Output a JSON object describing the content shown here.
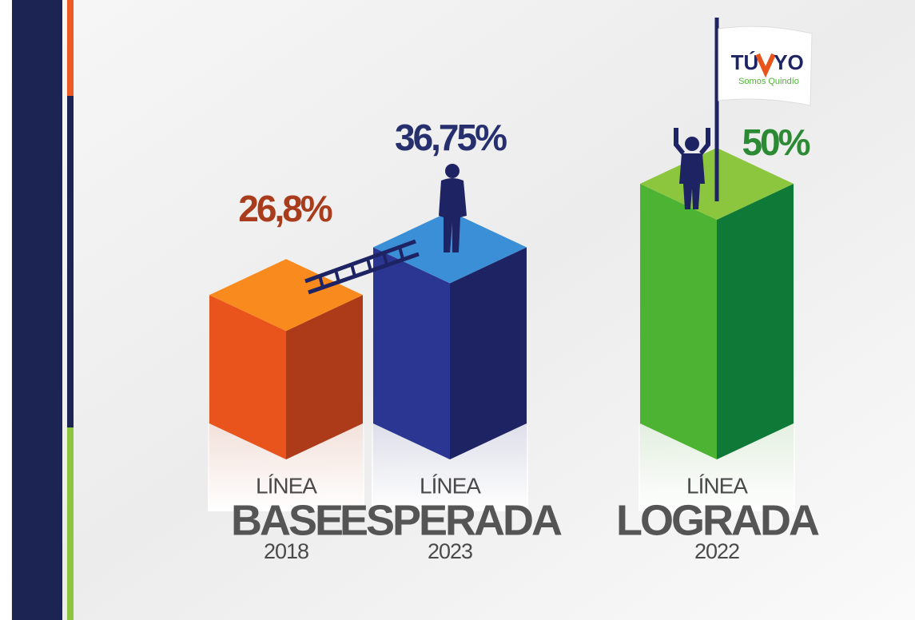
{
  "chart_data": {
    "type": "bar",
    "category_headers": [
      "LÍNEA",
      "LÍNEA",
      "LÍNEA"
    ],
    "categories": [
      "BASE",
      "ESPERADA",
      "LOGRADA"
    ],
    "years": [
      "2018",
      "2023",
      "2022"
    ],
    "values": [
      26.8,
      36.75,
      50
    ],
    "value_labels": [
      "26,8%",
      "36,75%",
      "50%"
    ],
    "label_colors": [
      "#a93c1c",
      "#27306e",
      "#2c8a35"
    ],
    "colors": [
      {
        "top": "#f98a1e",
        "left": "#e9541d",
        "right": "#ad3a19"
      },
      {
        "top": "#3b8fd6",
        "left": "#2b3592",
        "right": "#1e2463"
      },
      {
        "top": "#8cc63e",
        "left": "#4db433",
        "right": "#0f7a38"
      }
    ]
  },
  "logo": {
    "left": "TÚ",
    "right": "YO",
    "tagline": "Somos Quindío"
  }
}
